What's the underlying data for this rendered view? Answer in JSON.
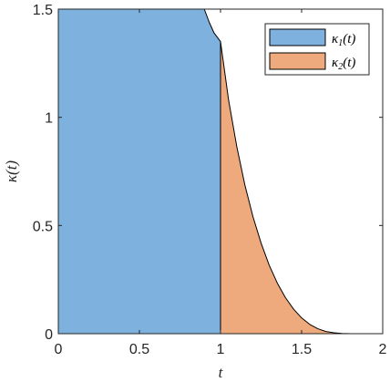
{
  "chart_data": {
    "type": "area",
    "title": "",
    "xlabel": "t",
    "ylabel": "κ(t)",
    "xlim": [
      0,
      2
    ],
    "ylim": [
      0,
      1.5
    ],
    "xticks": [
      0,
      0.5,
      1,
      1.5,
      2
    ],
    "xtick_labels": [
      "0",
      "0.5",
      "1",
      "1.5",
      "2"
    ],
    "yticks": [
      0,
      0.5,
      1,
      1.5
    ],
    "ytick_labels": [
      "0",
      "0.5",
      "1",
      "1.5"
    ],
    "grid": false,
    "legend_position": "top-right",
    "series": [
      {
        "name": "κ1(t)",
        "legend_main": "κ",
        "legend_sub": "1",
        "legend_tail": "(t)",
        "color": "#7EB1DE",
        "x": [
          0,
          0.9,
          0.93,
          0.96,
          1.0
        ],
        "y": [
          1.5,
          1.5,
          1.44,
          1.39,
          1.35
        ]
      },
      {
        "name": "κ2(t)",
        "legend_main": "κ",
        "legend_sub": "2",
        "legend_tail": "(t)",
        "color": "#EEA97C",
        "x": [
          1.0,
          1.05,
          1.1,
          1.15,
          1.2,
          1.25,
          1.3,
          1.35,
          1.4,
          1.45,
          1.5,
          1.55,
          1.6,
          1.65,
          1.7,
          1.75,
          1.8,
          1.85,
          1.87
        ],
        "y": [
          1.35,
          1.079,
          0.866,
          0.688,
          0.541,
          0.419,
          0.317,
          0.234,
          0.167,
          0.114,
          0.073,
          0.043,
          0.023,
          0.01,
          0.004,
          0.001,
          0.0,
          0.0,
          0.0
        ]
      }
    ]
  }
}
